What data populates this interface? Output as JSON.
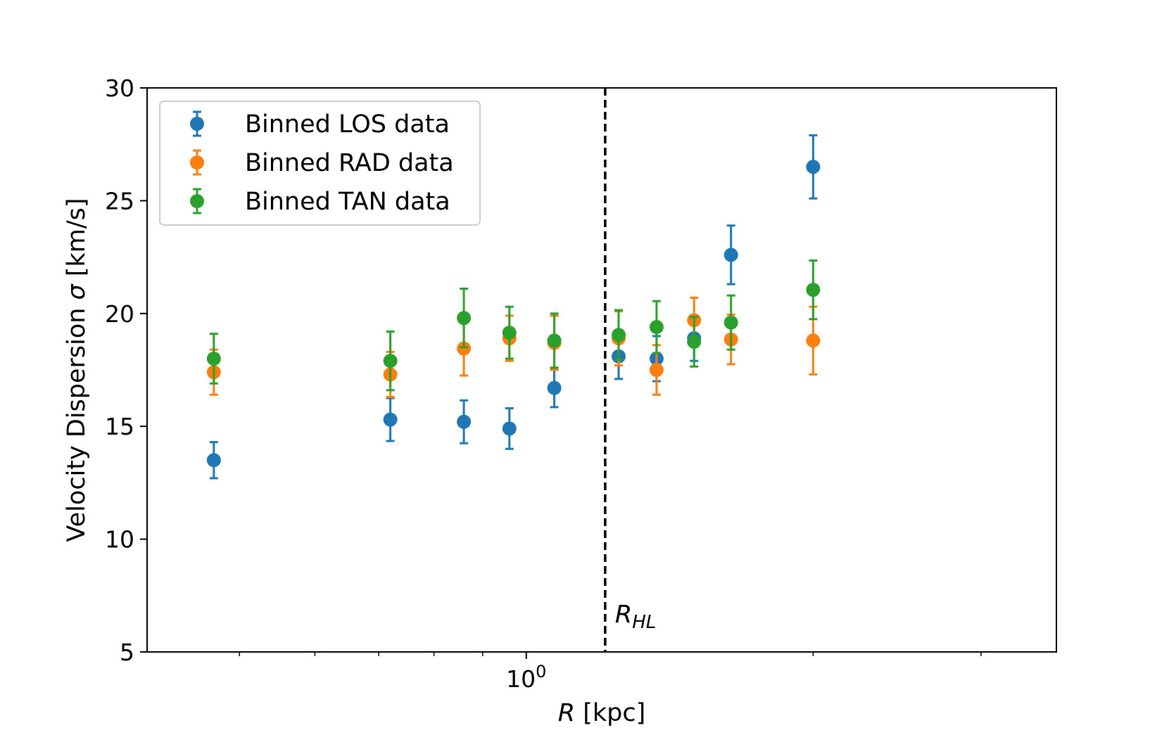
{
  "chart_data": {
    "type": "scatter",
    "title": "",
    "xlabel": {
      "var": "R",
      "unit": " [kpc]"
    },
    "ylabel": {
      "pre": "Velocity Dispersion ",
      "sym": "σ",
      "unit": " [km/s]"
    },
    "xscale": "log",
    "xlim": [
      0.4,
      3.6
    ],
    "ylim": [
      5,
      30
    ],
    "yticks": [
      5,
      10,
      15,
      20,
      25,
      30
    ],
    "xticks": [
      {
        "value": 1.0,
        "base": "10",
        "exp": "0"
      }
    ],
    "x_minor_ticks": [
      0.5,
      0.6,
      0.7,
      0.8,
      0.9,
      2,
      3
    ],
    "grid": false,
    "legend_position": "top-left",
    "vline": {
      "x": 1.21,
      "style": "dashed",
      "color": "#000000",
      "label_main": "R",
      "label_sub": "HL"
    },
    "series": [
      {
        "name": "Binned LOS data",
        "color": "#1f77b4",
        "x": [
          0.47,
          0.72,
          0.86,
          0.96,
          1.07,
          1.25,
          1.37,
          1.5,
          1.64,
          2.0
        ],
        "y": [
          13.5,
          15.3,
          15.2,
          14.9,
          16.7,
          18.1,
          18.0,
          18.9,
          22.6,
          26.5
        ],
        "yerr": [
          0.8,
          0.95,
          0.95,
          0.9,
          0.85,
          1.0,
          1.0,
          1.0,
          1.3,
          1.4
        ]
      },
      {
        "name": "Binned RAD data",
        "color": "#ff7f0e",
        "x": [
          0.47,
          0.72,
          0.86,
          0.96,
          1.07,
          1.25,
          1.37,
          1.5,
          1.64,
          2.0
        ],
        "y": [
          17.4,
          17.3,
          18.45,
          18.9,
          18.7,
          18.9,
          17.5,
          19.7,
          18.85,
          18.8
        ],
        "yerr": [
          1.0,
          1.0,
          1.2,
          1.0,
          1.2,
          1.2,
          1.1,
          1.0,
          1.1,
          1.5
        ]
      },
      {
        "name": "Binned TAN data",
        "color": "#2ca02c",
        "x": [
          0.47,
          0.72,
          0.86,
          0.96,
          1.07,
          1.25,
          1.37,
          1.5,
          1.64,
          2.0
        ],
        "y": [
          18.0,
          17.9,
          19.8,
          19.15,
          18.8,
          19.05,
          19.4,
          18.75,
          19.6,
          21.05
        ],
        "yerr": [
          1.1,
          1.3,
          1.3,
          1.15,
          1.2,
          1.1,
          1.15,
          1.1,
          1.2,
          1.3
        ]
      }
    ]
  }
}
